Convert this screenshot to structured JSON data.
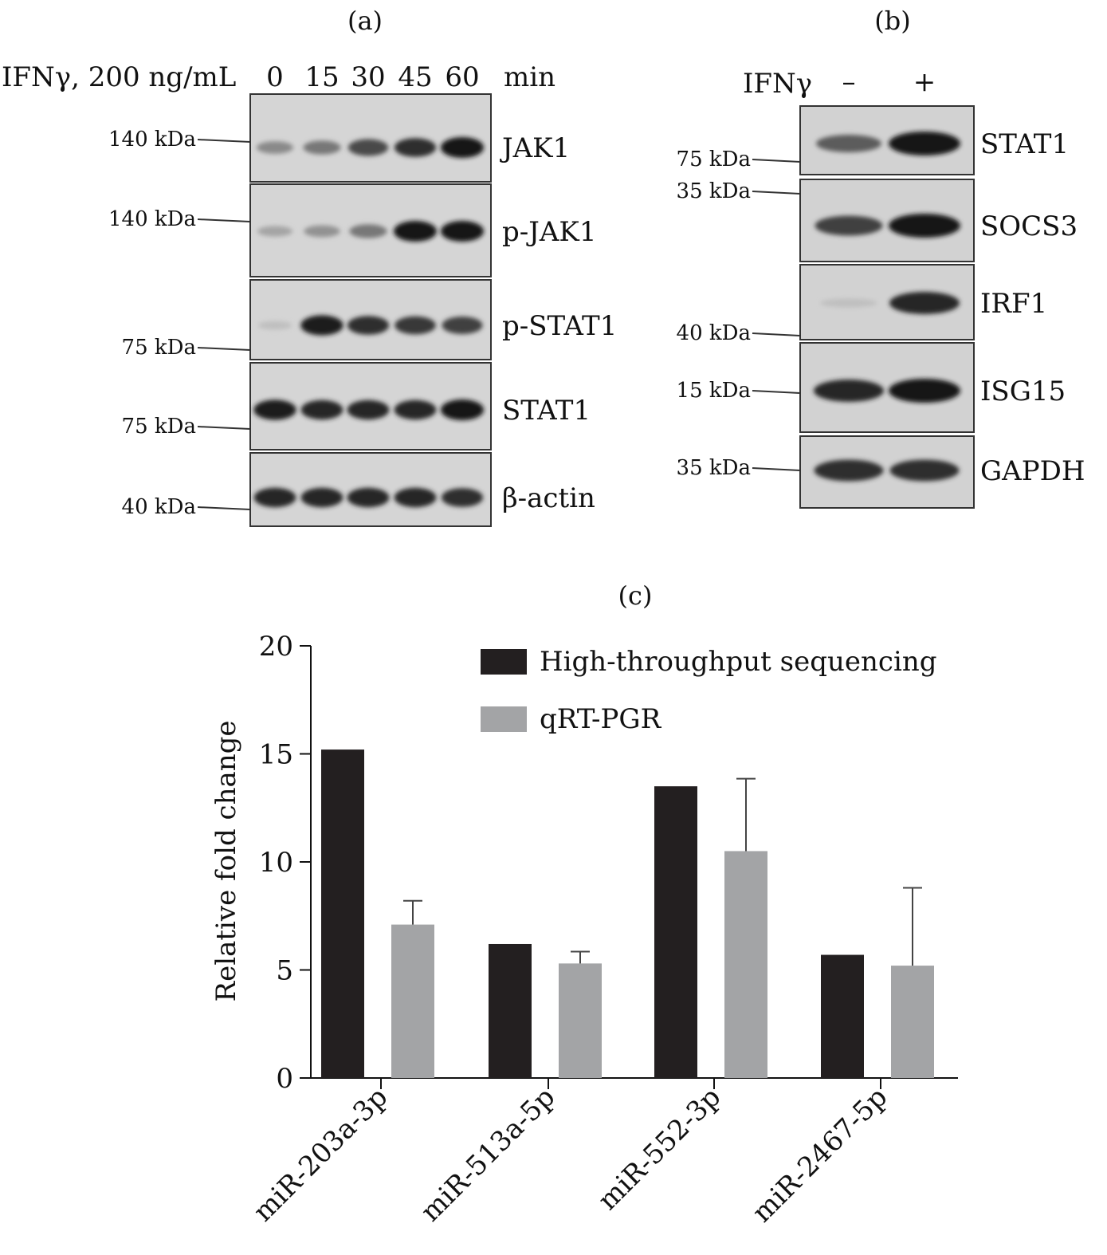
{
  "panel_a": {
    "label": "(a)",
    "treatment": "IFNγ, 200 ng/mL",
    "timepoints": [
      "0",
      "15",
      "30",
      "45",
      "60"
    ],
    "unit": "min",
    "blots": [
      {
        "name": "JAK1",
        "marker": "140 kDa",
        "intensities": [
          0.35,
          0.45,
          0.7,
          0.85,
          1.0
        ]
      },
      {
        "name": "p-JAK1",
        "marker": "140 kDa",
        "intensities": [
          0.2,
          0.3,
          0.45,
          1.0,
          1.0
        ]
      },
      {
        "name": "p-STAT1",
        "marker": "75 kDa",
        "intensities": [
          0.05,
          0.95,
          0.85,
          0.8,
          0.75
        ]
      },
      {
        "name": "STAT1",
        "marker": "75 kDa",
        "intensities": [
          0.95,
          0.9,
          0.9,
          0.9,
          1.0
        ]
      },
      {
        "name": "β-actin",
        "marker": "40 kDa",
        "intensities": [
          0.9,
          0.9,
          0.9,
          0.9,
          0.85
        ]
      }
    ]
  },
  "panel_b": {
    "label": "(b)",
    "treatment": "IFNγ",
    "conditions": [
      "–",
      "+"
    ],
    "blots": [
      {
        "name": "STAT1",
        "marker": "75 kDa",
        "intensities": [
          0.6,
          1.0
        ]
      },
      {
        "name": "SOCS3",
        "marker": "35 kDa",
        "intensities": [
          0.75,
          1.0
        ]
      },
      {
        "name": "IRF1",
        "marker": "40 kDa",
        "intensities": [
          0.05,
          0.9
        ]
      },
      {
        "name": "ISG15",
        "marker": "15 kDa",
        "intensities": [
          0.9,
          1.0
        ]
      },
      {
        "name": "GAPDH",
        "marker": "35 kDa",
        "intensities": [
          0.85,
          0.85
        ]
      }
    ]
  },
  "panel_c": {
    "label": "(c)"
  },
  "chart_data": {
    "type": "bar",
    "title": "",
    "xlabel": "",
    "ylabel": "Relative fold change",
    "ylim": [
      0,
      20
    ],
    "yticks": [
      0,
      5,
      10,
      15,
      20
    ],
    "categories": [
      "miR-203a-3p",
      "miR-513a-5p",
      "miR-552-3p",
      "miR-2467-5p"
    ],
    "series": [
      {
        "name": "High-throughput sequencing",
        "color": "#231f20",
        "values": [
          15.2,
          6.2,
          13.5,
          5.7
        ],
        "errors": [
          0,
          0,
          0,
          0
        ]
      },
      {
        "name": "qRT-PGR",
        "color": "#a3a4a6",
        "values": [
          7.1,
          5.3,
          10.5,
          5.2
        ],
        "errors": [
          1.1,
          0.55,
          3.35,
          3.6
        ]
      }
    ],
    "legend": "top-right",
    "grid": false
  }
}
